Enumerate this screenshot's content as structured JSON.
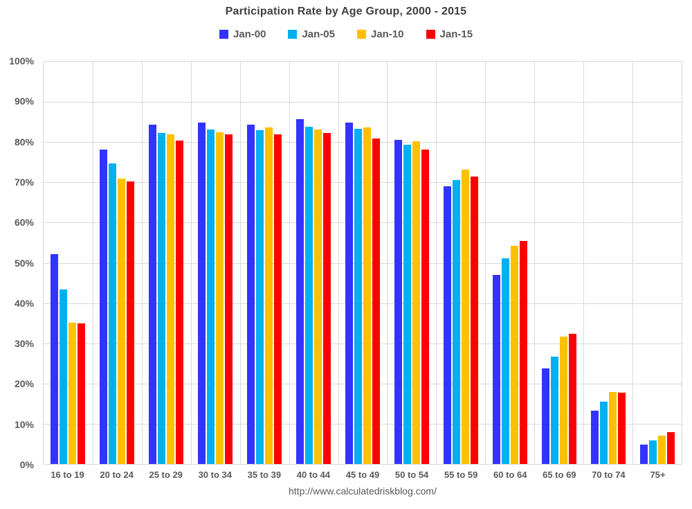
{
  "title": "Participation Rate by Age Group, 2000 - 2015",
  "footer_url": "http://www.calculatedriskblog.com/",
  "colors": {
    "jan00": "#3333FF",
    "jan05": "#00B0F0",
    "jan10": "#FFC000",
    "jan15": "#FF0000",
    "gridline": "#D9D9D9",
    "axis_text": "#595959",
    "title_text": "#404040"
  },
  "chart_data": {
    "type": "bar",
    "title": "Participation Rate by Age Group, 2000 - 2015",
    "categories": [
      "16 to 19",
      "20 to 24",
      "25 to 29",
      "30 to 34",
      "35 to 39",
      "40 to 44",
      "45 to 49",
      "50 to 54",
      "55 to 59",
      "60 to 64",
      "65 to 69",
      "70 to 74",
      "75+"
    ],
    "series": [
      {
        "name": "Jan-00",
        "color": "#3333FF",
        "values": [
          52.1,
          78.2,
          84.3,
          84.8,
          84.4,
          85.7,
          84.8,
          80.6,
          69.0,
          47.0,
          23.8,
          13.3,
          4.9
        ]
      },
      {
        "name": "Jan-05",
        "color": "#00B0F0",
        "values": [
          43.4,
          74.7,
          82.2,
          83.1,
          82.9,
          83.9,
          83.3,
          79.4,
          70.5,
          51.2,
          26.6,
          15.5,
          5.9
        ]
      },
      {
        "name": "Jan-10",
        "color": "#FFC000",
        "values": [
          35.1,
          70.9,
          81.9,
          82.4,
          83.7,
          83.2,
          83.6,
          80.2,
          73.2,
          54.3,
          31.7,
          17.9,
          7.1
        ]
      },
      {
        "name": "Jan-15",
        "color": "#FF0000",
        "values": [
          35.0,
          70.2,
          80.3,
          81.9,
          81.9,
          82.2,
          80.9,
          78.2,
          71.4,
          55.4,
          32.4,
          17.8,
          8.0
        ]
      }
    ],
    "xlabel": "",
    "ylabel": "",
    "ylim": [
      0,
      100
    ],
    "ytick_step": 10,
    "ytick_labels": [
      "0%",
      "10%",
      "20%",
      "30%",
      "40%",
      "50%",
      "60%",
      "70%",
      "80%",
      "90%",
      "100%"
    ],
    "grid": true,
    "legend_position": "top"
  }
}
